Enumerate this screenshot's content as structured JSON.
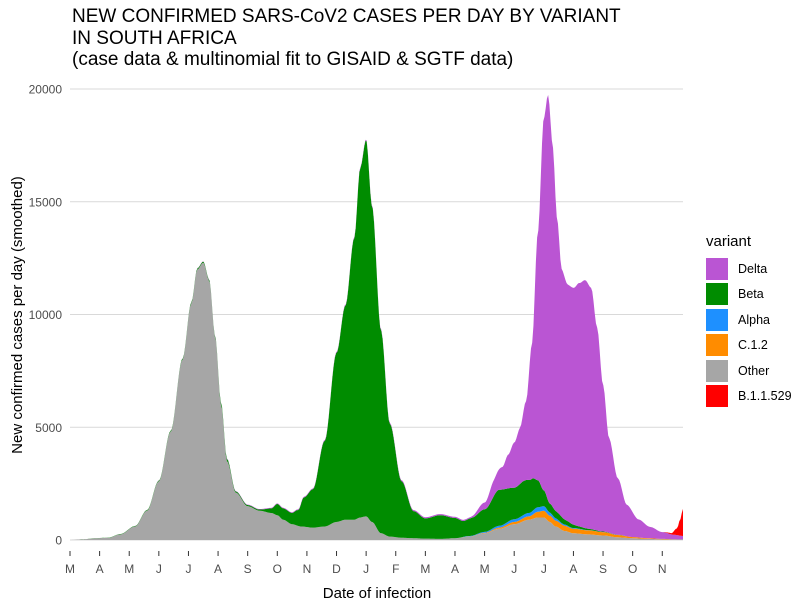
{
  "chart_data": {
    "type": "area",
    "stacked": true,
    "title": [
      "NEW CONFIRMED SARS-CoV2 CASES PER DAY BY VARIANT",
      "IN SOUTH AFRICA",
      "(case data & multinomial fit to GISAID & SGTF data)"
    ],
    "xlabel": "Date of infection",
    "ylabel": "New confirmed cases per day (smoothed)",
    "ylim": [
      0,
      20000
    ],
    "yticks": [
      0,
      5000,
      10000,
      15000,
      20000
    ],
    "xticks": [
      "M",
      "A",
      "M",
      "J",
      "J",
      "A",
      "S",
      "O",
      "N",
      "D",
      "J",
      "F",
      "M",
      "A",
      "M",
      "J",
      "J",
      "A",
      "S",
      "O",
      "N"
    ],
    "xlim": [
      0,
      20.7
    ],
    "grid": true,
    "legend": {
      "title": "variant",
      "position": "right"
    },
    "series": [
      {
        "name": "Other",
        "color": "#A6A6A6",
        "x": [
          0,
          0.4,
          0.9,
          1.3,
          1.7,
          2.2,
          2.6,
          3.0,
          3.4,
          3.8,
          4.1,
          4.3,
          4.5,
          4.7,
          4.9,
          5.1,
          5.3,
          5.6,
          6.0,
          6.4,
          6.8,
          7.0,
          7.2,
          7.5,
          7.8,
          8.2,
          8.6,
          9.0,
          9.3,
          9.6,
          9.8,
          10.0,
          10.2,
          10.5,
          10.8,
          11.2,
          11.6,
          12.0,
          12.5,
          13.0,
          13.5,
          14.0,
          14.5,
          15.0,
          15.5,
          15.8,
          16.0,
          16.2,
          16.4,
          16.7,
          17.0,
          17.5,
          18.0,
          18.5,
          19.0,
          19.5,
          20.0,
          20.5,
          20.7
        ],
        "values": [
          0,
          30,
          80,
          100,
          250,
          600,
          1300,
          2600,
          4800,
          8000,
          10500,
          12000,
          12300,
          11500,
          9000,
          6000,
          3500,
          2100,
          1500,
          1300,
          1200,
          1100,
          900,
          700,
          600,
          550,
          600,
          800,
          900,
          900,
          1000,
          1050,
          800,
          300,
          150,
          100,
          80,
          60,
          50,
          80,
          150,
          300,
          500,
          700,
          900,
          1000,
          1000,
          800,
          600,
          400,
          300,
          250,
          200,
          120,
          80,
          50,
          30,
          20,
          20
        ]
      },
      {
        "name": "C.1.2",
        "color": "#FF8C00",
        "x": [
          0,
          13.0,
          13.5,
          14.0,
          14.5,
          15.0,
          15.5,
          15.8,
          16.0,
          16.2,
          16.5,
          17.0,
          17.5,
          18.0,
          18.5,
          19.0,
          19.5,
          20.0,
          20.5,
          20.7
        ],
        "values": [
          0,
          0,
          10,
          20,
          50,
          100,
          150,
          250,
          300,
          280,
          250,
          200,
          180,
          150,
          100,
          50,
          30,
          20,
          10,
          10
        ]
      },
      {
        "name": "Alpha",
        "color": "#1E90FF",
        "x": [
          0,
          13.0,
          13.5,
          14.0,
          14.5,
          15.0,
          15.5,
          15.8,
          16.0,
          16.3,
          16.6,
          17.0,
          17.5,
          18.0,
          19.0,
          20.7
        ],
        "values": [
          0,
          0,
          20,
          40,
          80,
          120,
          150,
          200,
          200,
          120,
          60,
          30,
          10,
          5,
          0,
          0
        ]
      },
      {
        "name": "Beta",
        "color": "#008C00",
        "x": [
          0,
          4.9,
          5.1,
          5.3,
          5.6,
          6.0,
          6.4,
          6.8,
          7.0,
          7.2,
          7.5,
          7.7,
          7.9,
          8.2,
          8.6,
          9.0,
          9.3,
          9.6,
          9.8,
          10.0,
          10.2,
          10.5,
          10.8,
          11.2,
          11.6,
          12.0,
          12.5,
          13.0,
          13.3,
          13.6,
          14.0,
          14.5,
          15.0,
          15.3,
          15.6,
          15.8,
          16.0,
          16.2,
          16.5,
          16.8,
          17.2,
          17.6,
          18.0,
          18.5,
          19.0,
          20.7
        ],
        "values": [
          0,
          50,
          100,
          100,
          50,
          50,
          50,
          200,
          500,
          500,
          500,
          700,
          1300,
          1700,
          3800,
          7500,
          9500,
          12500,
          15500,
          16700,
          14000,
          9000,
          5000,
          2500,
          1200,
          900,
          1050,
          900,
          700,
          800,
          1000,
          1600,
          1400,
          1500,
          1450,
          1200,
          700,
          400,
          300,
          200,
          100,
          50,
          20,
          10,
          0,
          0
        ]
      },
      {
        "name": "Delta",
        "color": "#BA55D3",
        "x": [
          0,
          13.5,
          14.0,
          14.3,
          14.6,
          14.8,
          15.0,
          15.2,
          15.4,
          15.6,
          15.8,
          16.0,
          16.15,
          16.3,
          16.45,
          16.6,
          16.8,
          17.0,
          17.2,
          17.4,
          17.6,
          17.8,
          18.0,
          18.2,
          18.5,
          18.8,
          19.2,
          19.6,
          20.0,
          20.4,
          20.7
        ],
        "values": [
          0,
          50,
          300,
          700,
          1000,
          1500,
          2000,
          2500,
          3500,
          6000,
          11000,
          16500,
          18000,
          16000,
          13000,
          11000,
          10500,
          10500,
          10800,
          11000,
          10700,
          9000,
          6500,
          4200,
          2500,
          1400,
          800,
          500,
          300,
          200,
          150
        ]
      },
      {
        "name": "B.1.1.529",
        "color": "#FF0000",
        "x": [
          0,
          20.0,
          20.3,
          20.5,
          20.6,
          20.7
        ],
        "values": [
          0,
          0,
          50,
          300,
          700,
          1200
        ]
      }
    ],
    "legend_order": [
      "Delta",
      "Beta",
      "Alpha",
      "C.1.2",
      "Other",
      "B.1.1.529"
    ]
  }
}
